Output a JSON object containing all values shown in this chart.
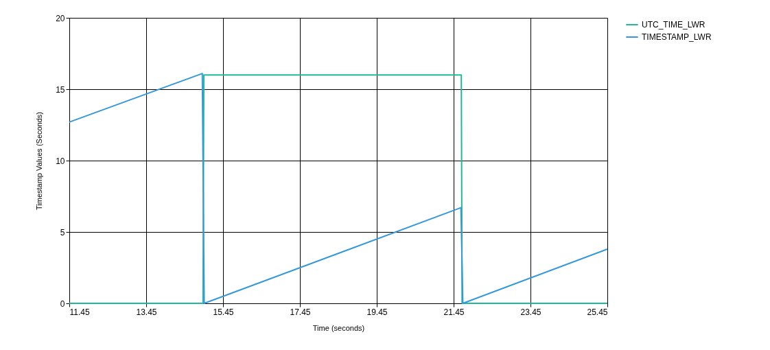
{
  "chart_data": {
    "type": "line",
    "xlabel": "Time (seconds)",
    "ylabel": "Timestamp Values (Seconds)",
    "xlim": [
      11.45,
      25.45
    ],
    "xticks": [
      11.45,
      13.45,
      15.45,
      17.45,
      19.45,
      21.45,
      23.45,
      25.45
    ],
    "ylim": [
      0,
      20
    ],
    "yticks": [
      0,
      5,
      10,
      15,
      20
    ],
    "grid": true,
    "legend": "top right",
    "line_style": "solid",
    "series": [
      {
        "name": "UTC_TIME_LWR",
        "color": "#1fb99a",
        "x": [
          11.45,
          14.93,
          14.95,
          21.65,
          21.67,
          25.45
        ],
        "values": [
          0,
          0,
          16,
          16,
          0,
          0
        ]
      },
      {
        "name": "TIMESTAMP_LWR",
        "color": "#3498db",
        "x": [
          11.45,
          14.91,
          14.96,
          21.64,
          21.69,
          25.45
        ],
        "values": [
          12.7,
          16.1,
          0,
          6.7,
          0,
          3.8
        ]
      }
    ]
  }
}
